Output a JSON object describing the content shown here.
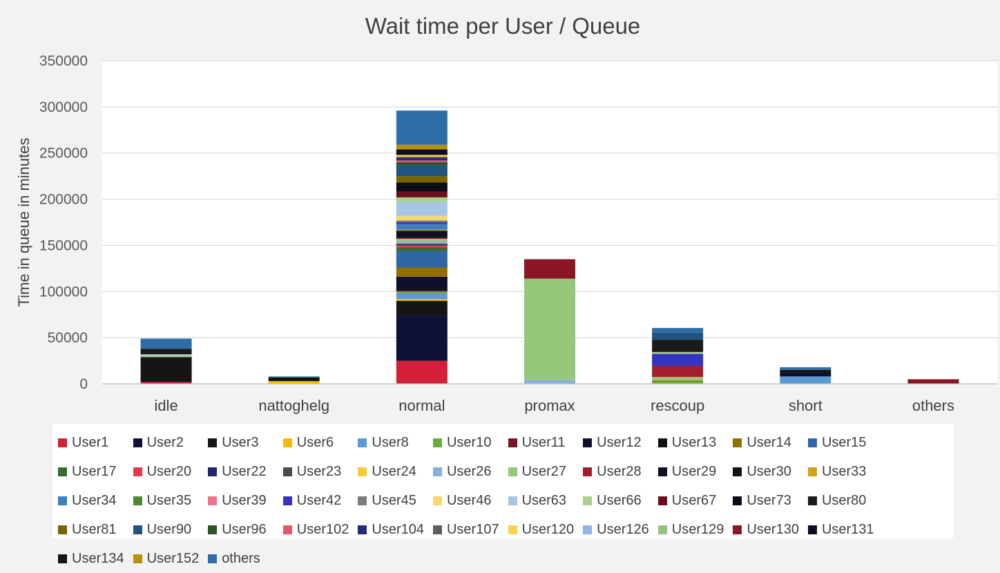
{
  "chart_data": {
    "type": "bar",
    "stacked": true,
    "title": "Wait time per User / Queue",
    "xlabel": "",
    "ylabel": "Time in queue in minutes",
    "ylim": [
      0,
      350000
    ],
    "yticks": [
      "0",
      "50000",
      "100000",
      "150000",
      "200000",
      "250000",
      "300000",
      "350000"
    ],
    "grid": true,
    "legend_position": "bottom",
    "categories": [
      "idle",
      "nattoghelg",
      "normal",
      "promax",
      "rescoup",
      "short",
      "others"
    ],
    "series": [
      {
        "name": "User1",
        "color": "#d31f38",
        "values": [
          2000,
          0,
          25000,
          0,
          0,
          0,
          0
        ]
      },
      {
        "name": "User2",
        "color": "#0e1038",
        "values": [
          0,
          0,
          49000,
          0,
          0,
          0,
          0
        ]
      },
      {
        "name": "User3",
        "color": "#151515",
        "values": [
          27000,
          0,
          16000,
          0,
          0,
          0,
          0
        ]
      },
      {
        "name": "User6",
        "color": "#f2bc00",
        "values": [
          0,
          3000,
          2000,
          0,
          0,
          0,
          0
        ]
      },
      {
        "name": "User8",
        "color": "#5b9bd5",
        "values": [
          0,
          0,
          6000,
          0,
          0,
          8000,
          0
        ]
      },
      {
        "name": "User10",
        "color": "#6aaa46",
        "values": [
          0,
          0,
          2000,
          0,
          2000,
          0,
          0
        ]
      },
      {
        "name": "User11",
        "color": "#7a1424",
        "values": [
          0,
          0,
          1000,
          0,
          0,
          0,
          0
        ]
      },
      {
        "name": "User12",
        "color": "#0f0f2e",
        "values": [
          0,
          0,
          15000,
          0,
          0,
          4000,
          0
        ]
      },
      {
        "name": "User13",
        "color": "#111111",
        "values": [
          0,
          0,
          0,
          0,
          0,
          0,
          0
        ]
      },
      {
        "name": "User14",
        "color": "#8f7000",
        "values": [
          0,
          0,
          10000,
          0,
          1500,
          0,
          0
        ]
      },
      {
        "name": "User15",
        "color": "#2e67a4",
        "values": [
          0,
          0,
          18000,
          0,
          0,
          0,
          0
        ]
      },
      {
        "name": "User17",
        "color": "#3c6a2d",
        "values": [
          0,
          0,
          4000,
          0,
          0,
          0,
          0
        ]
      },
      {
        "name": "User20",
        "color": "#e3394f",
        "values": [
          0,
          0,
          2000,
          0,
          0,
          0,
          0
        ]
      },
      {
        "name": "User22",
        "color": "#24246e",
        "values": [
          0,
          0,
          1000,
          0,
          0,
          0,
          0
        ]
      },
      {
        "name": "User23",
        "color": "#4a4a4a",
        "values": [
          0,
          0,
          1000,
          0,
          0,
          0,
          0
        ]
      },
      {
        "name": "User24",
        "color": "#f7cb33",
        "values": [
          0,
          0,
          0,
          0,
          0,
          0,
          0
        ]
      },
      {
        "name": "User26",
        "color": "#86b0e0",
        "values": [
          0,
          0,
          2000,
          4000,
          0,
          0,
          0
        ]
      },
      {
        "name": "User27",
        "color": "#96c77b",
        "values": [
          1000,
          0,
          3000,
          110000,
          4000,
          0,
          0
        ]
      },
      {
        "name": "User28",
        "color": "#a51d2d",
        "values": [
          0,
          0,
          1000,
          0,
          12000,
          0,
          0
        ]
      },
      {
        "name": "User29",
        "color": "#0f0e22",
        "values": [
          0,
          0,
          7000,
          0,
          0,
          0,
          0
        ]
      },
      {
        "name": "User30",
        "color": "#121212",
        "values": [
          0,
          0,
          1000,
          0,
          0,
          0,
          0
        ]
      },
      {
        "name": "User33",
        "color": "#d4a017",
        "values": [
          0,
          0,
          1000,
          0,
          0,
          0,
          0
        ]
      },
      {
        "name": "User34",
        "color": "#3d7fc1",
        "values": [
          0,
          0,
          6000,
          0,
          0,
          0,
          0
        ]
      },
      {
        "name": "User35",
        "color": "#4f8736",
        "values": [
          0,
          0,
          0,
          0,
          0,
          0,
          0
        ]
      },
      {
        "name": "User39",
        "color": "#ec7486",
        "values": [
          0,
          0,
          0,
          0,
          0,
          0,
          0
        ]
      },
      {
        "name": "User42",
        "color": "#3434c0",
        "values": [
          0,
          0,
          2000,
          0,
          13000,
          0,
          0
        ]
      },
      {
        "name": "User45",
        "color": "#7b7b7b",
        "values": [
          0,
          0,
          2000,
          0,
          0,
          0,
          0
        ]
      },
      {
        "name": "User46",
        "color": "#f5d76e",
        "values": [
          0,
          0,
          5000,
          0,
          0,
          0,
          0
        ]
      },
      {
        "name": "User63",
        "color": "#a7c6e6",
        "values": [
          1000,
          0,
          15000,
          0,
          0,
          0,
          0
        ]
      },
      {
        "name": "User66",
        "color": "#a9d18e",
        "values": [
          1000,
          0,
          5000,
          0,
          2000,
          0,
          0
        ]
      },
      {
        "name": "User67",
        "color": "#6b0f1a",
        "values": [
          0,
          0,
          6000,
          0,
          0,
          0,
          0
        ]
      },
      {
        "name": "User73",
        "color": "#0c0c18",
        "values": [
          0,
          0,
          10000,
          0,
          0,
          0,
          0
        ]
      },
      {
        "name": "User80",
        "color": "#1a1a1a",
        "values": [
          6000,
          0,
          0,
          0,
          13000,
          0,
          0
        ]
      },
      {
        "name": "User81",
        "color": "#7a6400",
        "values": [
          0,
          0,
          7000,
          0,
          0,
          0,
          0
        ]
      },
      {
        "name": "User90",
        "color": "#22527f",
        "values": [
          0,
          0,
          12000,
          0,
          8000,
          0,
          0
        ]
      },
      {
        "name": "User96",
        "color": "#2f5423",
        "values": [
          0,
          0,
          3000,
          0,
          0,
          0,
          0
        ]
      },
      {
        "name": "User102",
        "color": "#e8546a",
        "values": [
          0,
          0,
          2000,
          0,
          0,
          0,
          0
        ]
      },
      {
        "name": "User104",
        "color": "#27297a",
        "values": [
          0,
          0,
          3000,
          0,
          0,
          0,
          0
        ]
      },
      {
        "name": "User107",
        "color": "#5e5e5e",
        "values": [
          0,
          0,
          1000,
          0,
          0,
          0,
          0
        ]
      },
      {
        "name": "User120",
        "color": "#fad34a",
        "values": [
          0,
          0,
          2000,
          0,
          0,
          0,
          0
        ]
      },
      {
        "name": "User126",
        "color": "#8fb4e3",
        "values": [
          0,
          0,
          0,
          0,
          0,
          0,
          0
        ]
      },
      {
        "name": "User129",
        "color": "#93c47d",
        "values": [
          0,
          0,
          0,
          0,
          0,
          0,
          0
        ]
      },
      {
        "name": "User130",
        "color": "#8b1625",
        "values": [
          0,
          0,
          0,
          21000,
          0,
          0,
          5000
        ]
      },
      {
        "name": "User131",
        "color": "#0d0d22",
        "values": [
          0,
          0,
          6000,
          0,
          0,
          0,
          0
        ]
      },
      {
        "name": "User134",
        "color": "#141414",
        "values": [
          0,
          4000,
          0,
          0,
          0,
          3000,
          0
        ]
      },
      {
        "name": "User152",
        "color": "#b8900a",
        "values": [
          0,
          0,
          5000,
          0,
          0,
          0,
          0
        ]
      },
      {
        "name": "others",
        "color": "#2e6da8",
        "values": [
          11000,
          1000,
          37000,
          0,
          5000,
          3000,
          0
        ]
      }
    ]
  }
}
